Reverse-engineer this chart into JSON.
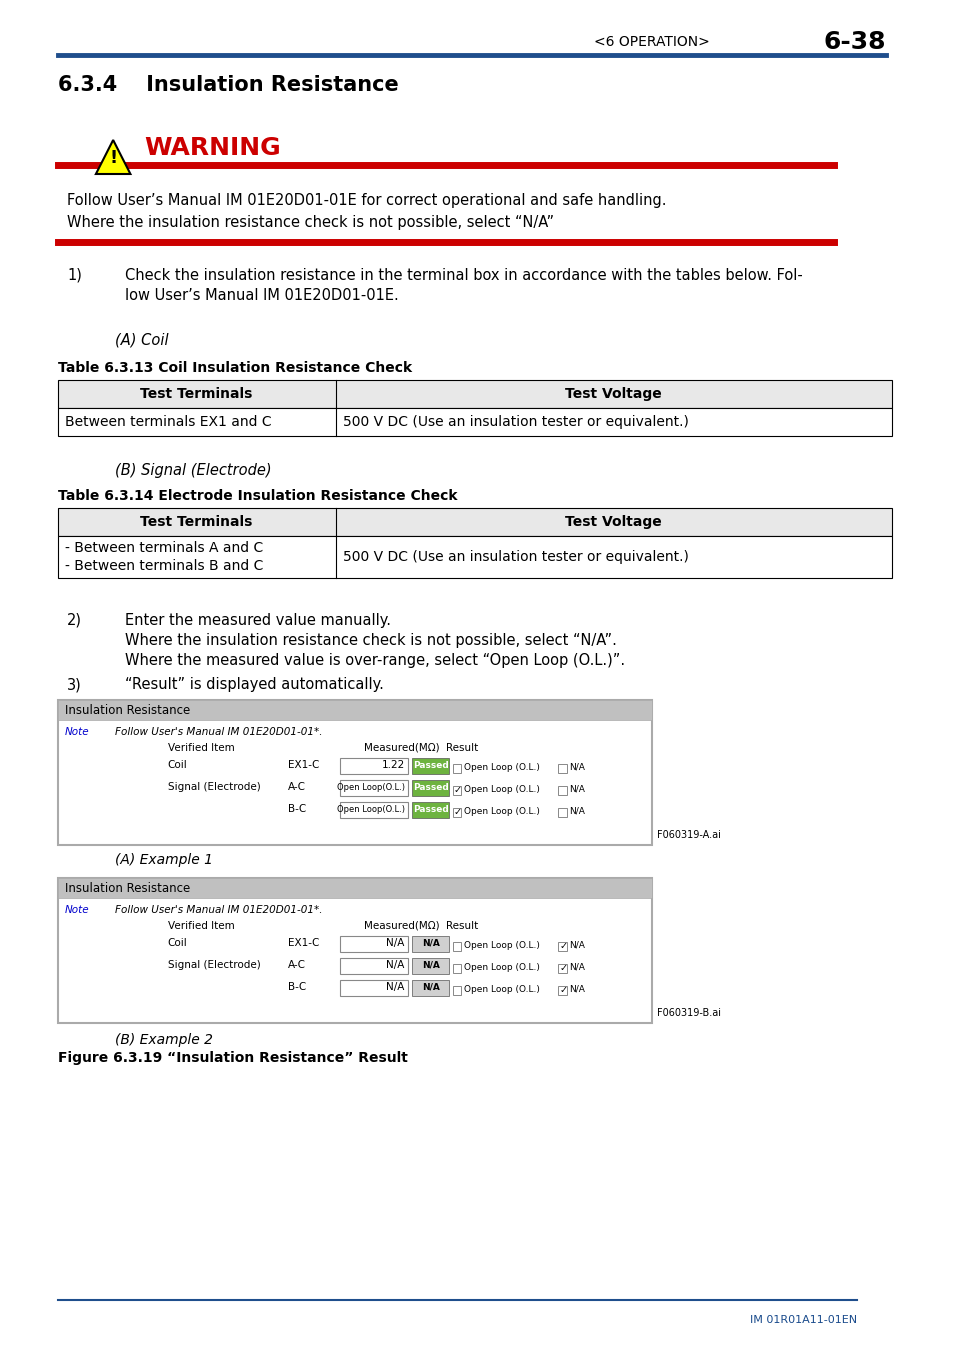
{
  "page_header_left": "<6 OPERATION>",
  "page_header_right": "6-38",
  "section_title": "6.3.4    Insulation Resistance",
  "warning_text": "WARNING",
  "warning_line1": "Follow User’s Manual IM 01E20D01-01E for correct operational and safe handling.",
  "warning_line2": "Where the insulation resistance check is not possible, select “N/A”",
  "step1_num": "1)",
  "step1_line1": "Check the insulation resistance in the terminal box in accordance with the tables below. Fol-",
  "step1_line2": "low User’s Manual IM 01E20D01-01E.",
  "sub_a": "(A) Coil",
  "table1_title": "Table 6.3.13 Coil Insulation Resistance Check",
  "table1_col1": "Test Terminals",
  "table1_col2": "Test Voltage",
  "table1_row1_c1": "Between terminals EX1 and C",
  "table1_row1_c2": "500 V DC (Use an insulation tester or equivalent.)",
  "sub_b": "(B) Signal (Electrode)",
  "table2_title": "Table 6.3.14 Electrode Insulation Resistance Check",
  "table2_col1": "Test Terminals",
  "table2_col2": "Test Voltage",
  "table2_row1_c1a": "- Between terminals A and C",
  "table2_row1_c1b": "- Between terminals B and C",
  "table2_row1_c2": "500 V DC (Use an insulation tester or equivalent.)",
  "step2_num": "2)",
  "step2_line1": "Enter the measured value manually.",
  "step2_line2": "Where the insulation resistance check is not possible, select “N/A”.",
  "step2_line3": "Where the measured value is over-range, select “Open Loop (O.L.)”.",
  "step3_num": "3)",
  "step3_line1": "“Result” is displayed automatically.",
  "example_a_label": "(A) Example 1",
  "example_b_label": "(B) Example 2",
  "figure_caption": "Figure 6.3.19 “Insulation Resistance” Result",
  "footer_text": "IM 01R01A11-01EN",
  "blue_color": "#1a4b8c",
  "red_color": "#cc0000",
  "header_blue": "#1f4e8c",
  "bg_white": "#ffffff",
  "table_header_bg": "#e8e8e8",
  "screen_bg": "#e8e8e8",
  "screen_border": "#999999",
  "screen_title_bg": "#c0c0c0",
  "passed_green": "#6db33f",
  "note_link_blue": "#0000cc"
}
